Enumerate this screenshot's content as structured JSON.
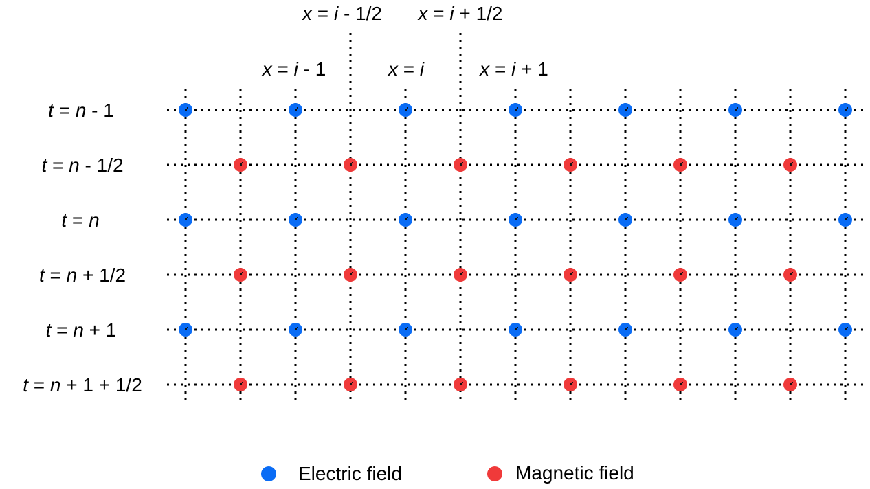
{
  "colors": {
    "electric": "#0a6cf5",
    "magnetic": "#f03a3a",
    "grid": "#000000"
  },
  "column_labels": [
    {
      "parts": [
        {
          "t": "x",
          "i": true
        },
        {
          "t": " = "
        },
        {
          "t": "i",
          "i": true
        },
        {
          "t": " - 1/2"
        }
      ]
    },
    {
      "parts": [
        {
          "t": "x",
          "i": true
        },
        {
          "t": " = "
        },
        {
          "t": "i",
          "i": true
        },
        {
          "t": " + 1/2"
        }
      ]
    },
    {
      "parts": [
        {
          "t": "x",
          "i": true
        },
        {
          "t": " = "
        },
        {
          "t": "i",
          "i": true
        },
        {
          "t": " - 1"
        }
      ]
    },
    {
      "parts": [
        {
          "t": "x",
          "i": true
        },
        {
          "t": " = "
        },
        {
          "t": "i",
          "i": true
        }
      ]
    },
    {
      "parts": [
        {
          "t": "x",
          "i": true
        },
        {
          "t": " = "
        },
        {
          "t": "i",
          "i": true
        },
        {
          "t": " + 1"
        }
      ]
    }
  ],
  "row_labels": [
    {
      "parts": [
        {
          "t": "t",
          "i": true
        },
        {
          "t": " = "
        },
        {
          "t": "n",
          "i": true
        },
        {
          "t": " - 1"
        }
      ]
    },
    {
      "parts": [
        {
          "t": "t",
          "i": true
        },
        {
          "t": " = "
        },
        {
          "t": "n",
          "i": true
        },
        {
          "t": " - 1/2"
        }
      ]
    },
    {
      "parts": [
        {
          "t": "t",
          "i": true
        },
        {
          "t": " = "
        },
        {
          "t": "n",
          "i": true
        }
      ]
    },
    {
      "parts": [
        {
          "t": "t",
          "i": true
        },
        {
          "t": " = "
        },
        {
          "t": "n",
          "i": true
        },
        {
          "t": " + 1/2"
        }
      ]
    },
    {
      "parts": [
        {
          "t": "t",
          "i": true
        },
        {
          "t": " = "
        },
        {
          "t": "n",
          "i": true
        },
        {
          "t": " + 1"
        }
      ]
    },
    {
      "parts": [
        {
          "t": "t",
          "i": true
        },
        {
          "t": " = "
        },
        {
          "t": "n",
          "i": true
        },
        {
          "t": " + 1 + 1/2"
        }
      ]
    }
  ],
  "rows": [
    "electric",
    "magnetic",
    "electric",
    "magnetic",
    "electric",
    "magnetic"
  ],
  "electric_points_per_row": 7,
  "magnetic_points_per_row": 6,
  "legend": {
    "electric": "Electric field",
    "magnetic": "Magnetic field"
  }
}
